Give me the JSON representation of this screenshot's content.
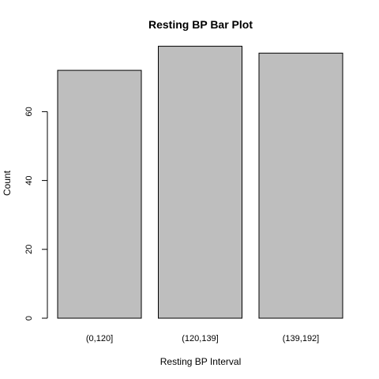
{
  "chart_data": {
    "type": "bar",
    "title": "Resting BP Bar Plot",
    "xlabel": "Resting BP Interval",
    "ylabel": "Count",
    "categories": [
      "(0,120]",
      "(120,139]",
      "(139,192]"
    ],
    "values": [
      72,
      79,
      77
    ],
    "ylim": [
      0,
      80
    ],
    "yticks": [
      0,
      20,
      40,
      60
    ],
    "bar_color": "#bebebe",
    "bar_stroke": "#000000",
    "grid": false,
    "legend": "none"
  }
}
